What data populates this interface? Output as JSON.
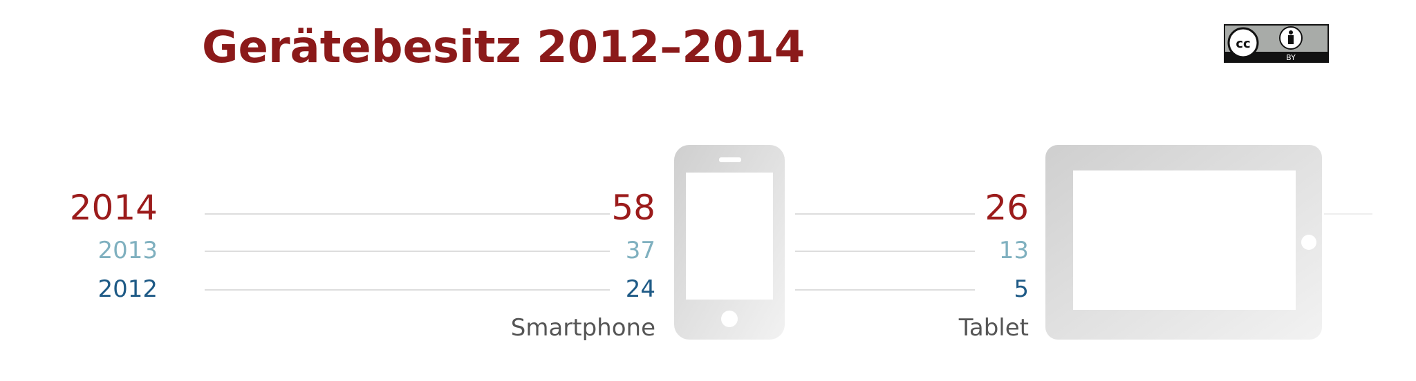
{
  "title": "Gerätebesitz 2012–2014",
  "license": {
    "badge_text": "BY",
    "icon": "cc-by-icon"
  },
  "colors": {
    "title": "#8b1a1a",
    "y2014": "#9b1b1b",
    "y2013": "#7fb0bf",
    "y2012": "#1e5a86",
    "label": "#555555",
    "line": "#dddddd",
    "device": "#d4d4d4"
  },
  "chart_data": {
    "type": "table",
    "title": "Gerätebesitz 2012–2014",
    "categories": [
      "Smartphone",
      "Tablet"
    ],
    "series": [
      {
        "name": "2014",
        "values": [
          58,
          26
        ]
      },
      {
        "name": "2013",
        "values": [
          37,
          13
        ]
      },
      {
        "name": "2012",
        "values": [
          24,
          5
        ]
      }
    ]
  }
}
